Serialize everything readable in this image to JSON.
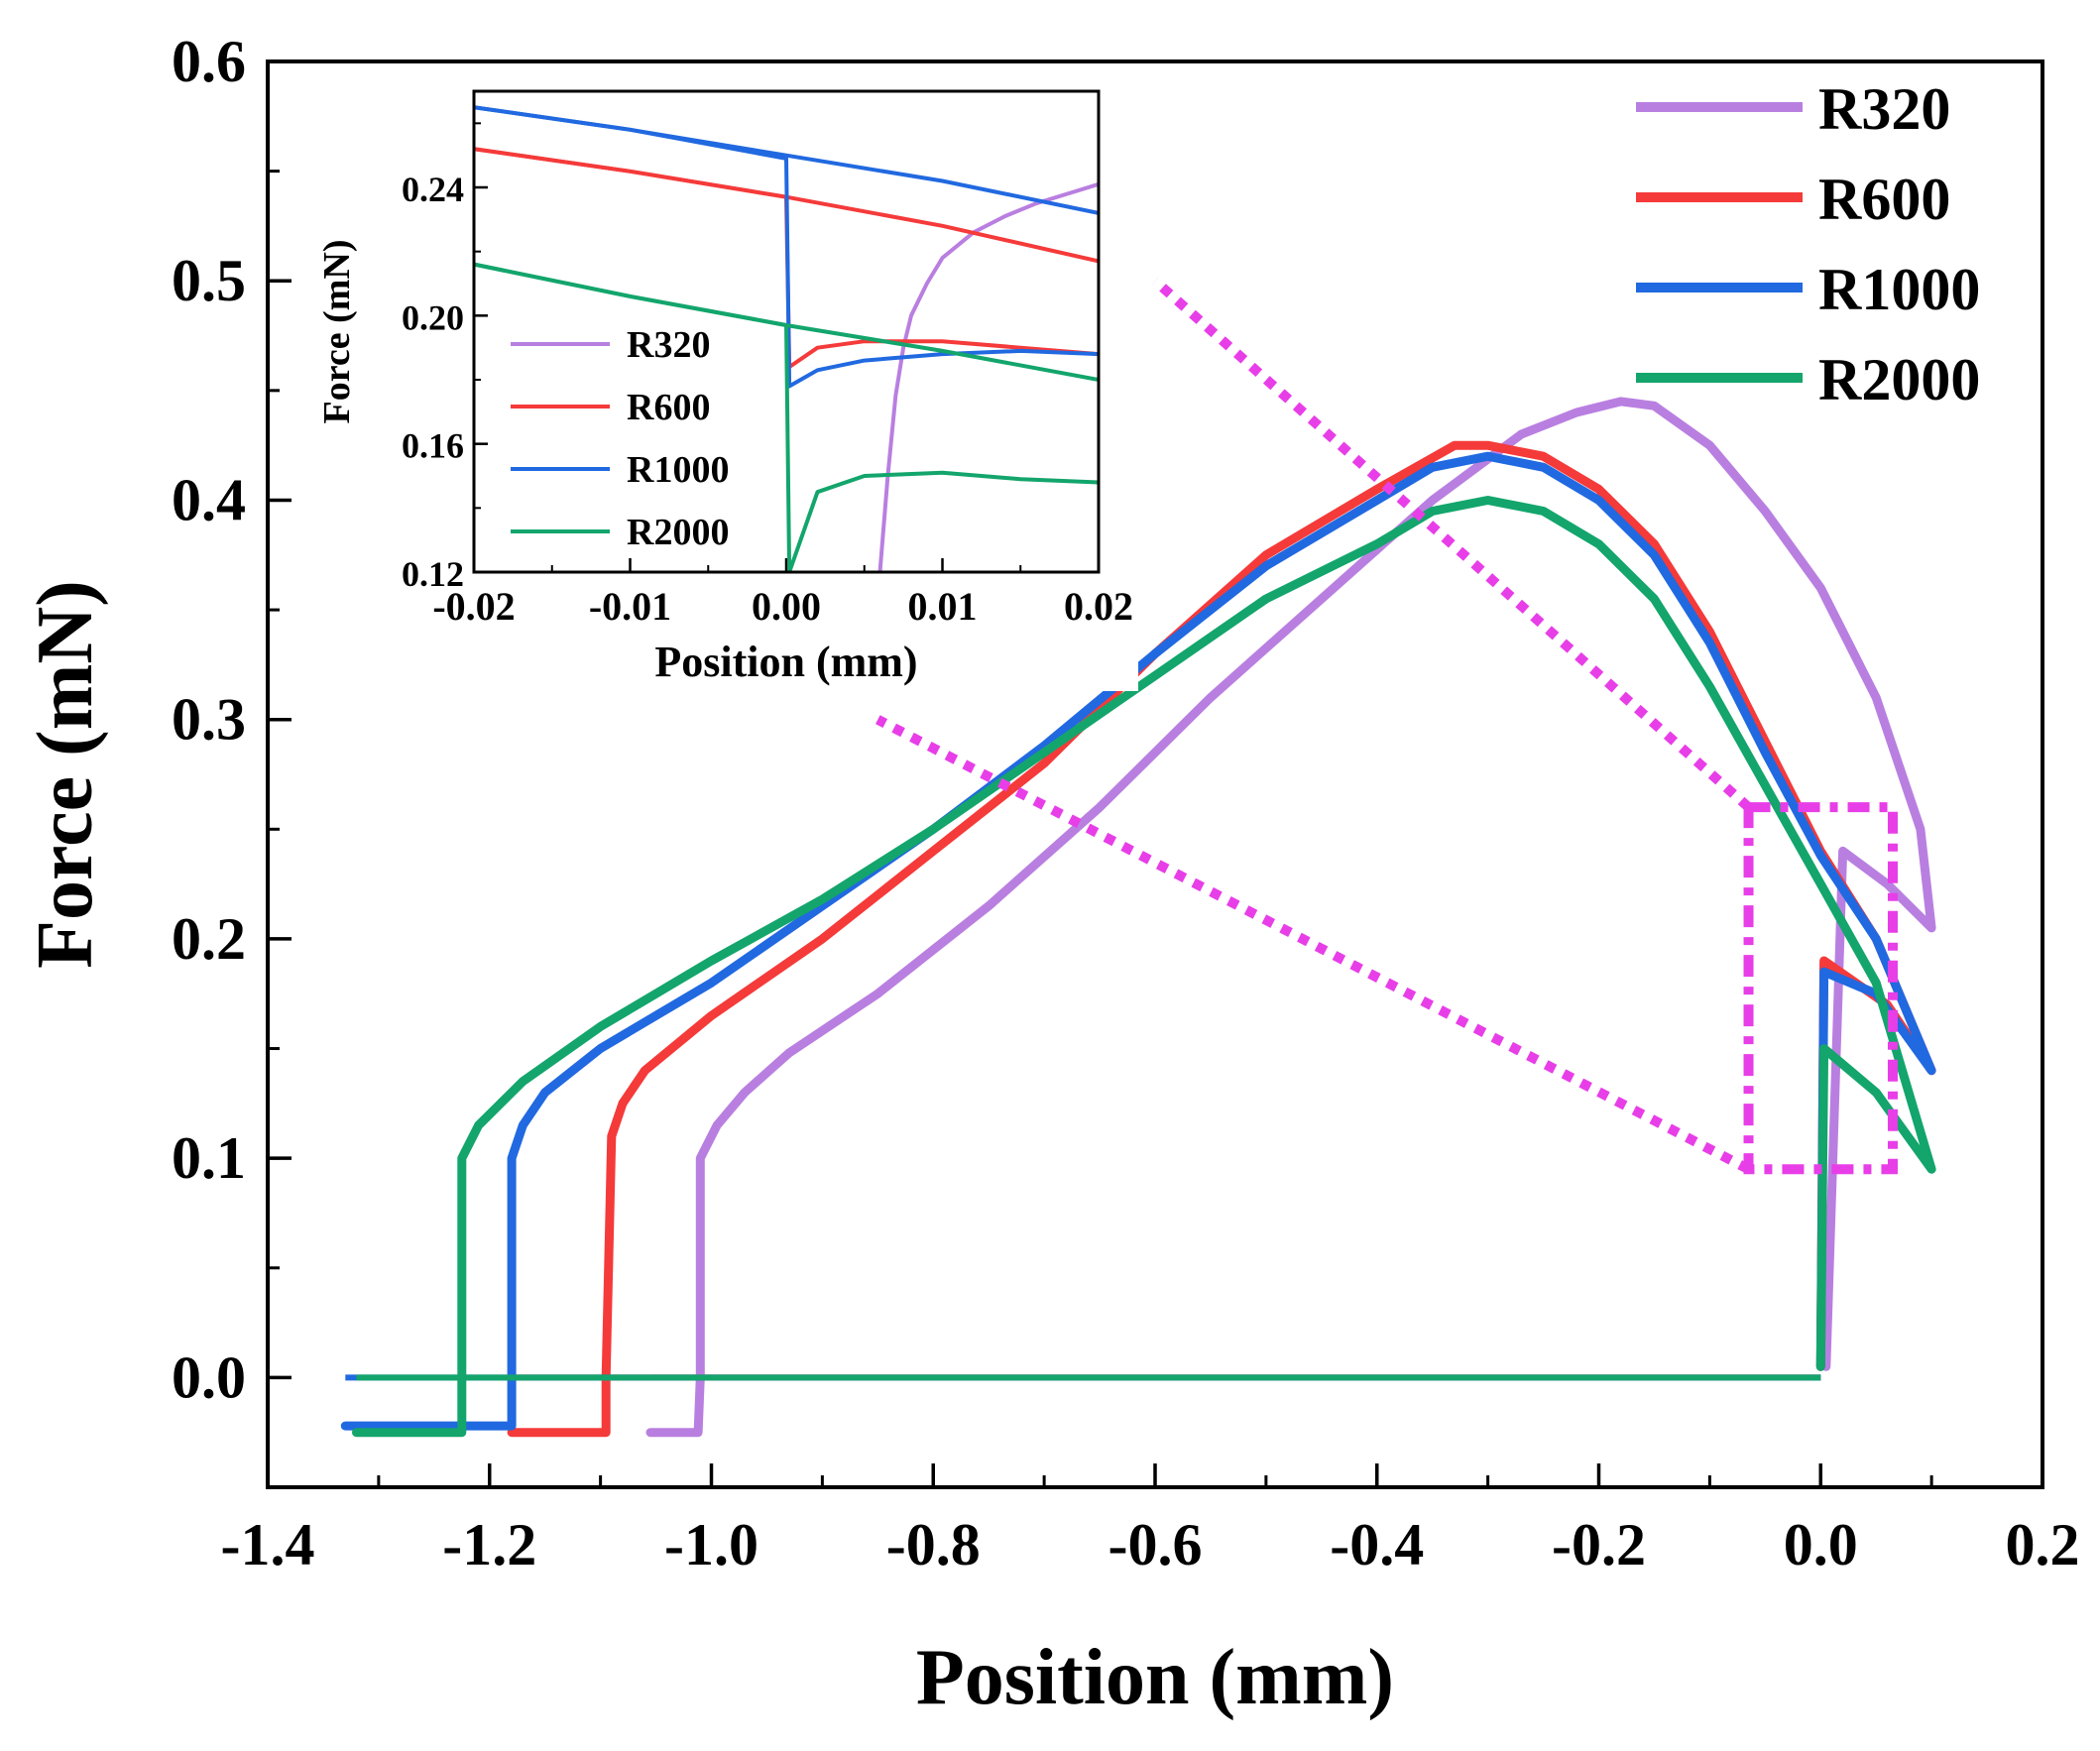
{
  "chart_data": [
    {
      "type": "line",
      "title": "",
      "xlabel": "Position (mm)",
      "ylabel": "Force (mN)",
      "xlim": [
        -1.4,
        0.2
      ],
      "ylim": [
        -0.05,
        0.6
      ],
      "xticks": [
        -1.4,
        -1.2,
        -1.0,
        -0.8,
        -0.6,
        -0.4,
        -0.2,
        0.0,
        0.2
      ],
      "xtick_labels": [
        "-1.4",
        "-1.2",
        "-1.0",
        "-0.8",
        "-0.6",
        "-0.4",
        "-0.2",
        "0.0",
        "0.2"
      ],
      "yticks": [
        0.0,
        0.1,
        0.2,
        0.3,
        0.4,
        0.5,
        0.6
      ],
      "ytick_labels": [
        "0.0",
        "0.1",
        "0.2",
        "0.3",
        "0.4",
        "0.5",
        "0.6"
      ],
      "legend": "top-right",
      "grid": false,
      "series": [
        {
          "name": "R320",
          "color": "#b97fe0",
          "x": [
            0.005,
            0.02,
            0.06,
            0.1,
            0.09,
            0.05,
            0.0,
            -0.05,
            -0.1,
            -0.15,
            -0.18,
            -0.22,
            -0.27,
            -0.35,
            -0.45,
            -0.55,
            -0.65,
            -0.75,
            -0.85,
            -0.93,
            -0.97,
            -0.995,
            -1.01,
            -1.01,
            -1.012,
            -1.035,
            -1.055
          ],
          "y": [
            0.005,
            0.24,
            0.225,
            0.205,
            0.25,
            0.31,
            0.36,
            0.395,
            0.425,
            0.443,
            0.445,
            0.44,
            0.43,
            0.4,
            0.355,
            0.31,
            0.26,
            0.215,
            0.175,
            0.148,
            0.13,
            0.115,
            0.1,
            0.0,
            -0.025,
            -0.025,
            -0.025
          ]
        },
        {
          "name": "R600",
          "color": "#f53a3a",
          "x": [
            0.0,
            0.003,
            0.06,
            0.1,
            0.05,
            0.0,
            -0.05,
            -0.1,
            -0.15,
            -0.2,
            -0.25,
            -0.3,
            -0.33,
            -0.4,
            -0.5,
            -0.6,
            -0.7,
            -0.8,
            -0.9,
            -1.0,
            -1.06,
            -1.08,
            -1.09,
            -1.095,
            -1.095,
            -1.13,
            -1.18
          ],
          "y": [
            0.005,
            0.19,
            0.17,
            0.14,
            0.2,
            0.24,
            0.29,
            0.34,
            0.38,
            0.405,
            0.42,
            0.425,
            0.425,
            0.405,
            0.375,
            0.33,
            0.28,
            0.24,
            0.2,
            0.165,
            0.14,
            0.125,
            0.11,
            0.0,
            -0.025,
            -0.025,
            -0.025
          ]
        },
        {
          "name": "R1000",
          "color": "#2169e0",
          "x": [
            0.0,
            0.003,
            0.05,
            0.1,
            0.05,
            0.0,
            -0.05,
            -0.1,
            -0.15,
            -0.2,
            -0.25,
            -0.3,
            -0.35,
            -0.4,
            -0.5,
            -0.6,
            -0.7,
            -0.8,
            -0.9,
            -1.0,
            -1.1,
            -1.15,
            -1.17,
            -1.18,
            -1.18,
            -1.25,
            -1.33
          ],
          "y": [
            0.005,
            0.185,
            0.175,
            0.14,
            0.2,
            0.238,
            0.285,
            0.335,
            0.375,
            0.4,
            0.415,
            0.42,
            0.415,
            0.4,
            0.37,
            0.33,
            0.288,
            0.25,
            0.215,
            0.18,
            0.15,
            0.13,
            0.115,
            0.1,
            -0.022,
            -0.022,
            -0.022
          ]
        },
        {
          "name": "R2000",
          "color": "#13a56c",
          "x": [
            0.0,
            0.003,
            0.05,
            0.1,
            0.05,
            0.0,
            -0.05,
            -0.1,
            -0.15,
            -0.2,
            -0.25,
            -0.3,
            -0.35,
            -0.4,
            -0.5,
            -0.6,
            -0.7,
            -0.8,
            -0.9,
            -1.0,
            -1.1,
            -1.17,
            -1.21,
            -1.225,
            -1.225,
            -1.27,
            -1.32
          ],
          "y": [
            0.005,
            0.15,
            0.13,
            0.095,
            0.18,
            0.225,
            0.27,
            0.315,
            0.355,
            0.38,
            0.395,
            0.4,
            0.395,
            0.38,
            0.355,
            0.32,
            0.285,
            0.25,
            0.218,
            0.19,
            0.16,
            0.135,
            0.115,
            0.1,
            -0.025,
            -0.025,
            -0.025
          ]
        }
      ],
      "annotations": [
        {
          "type": "highlight-box",
          "x_range": [
            -0.065,
            0.065
          ],
          "y_range": [
            0.095,
            0.26
          ],
          "color": "#e83ee8"
        },
        {
          "type": "zoom-line",
          "from": [
            -0.065,
            0.26
          ],
          "to": [
            -0.6,
            0.5
          ],
          "color": "#e83ee8"
        },
        {
          "type": "zoom-line",
          "from": [
            -0.065,
            0.095
          ],
          "to": [
            -0.85,
            0.3
          ],
          "color": "#e83ee8"
        }
      ]
    },
    {
      "type": "line",
      "title": "",
      "xlabel": "Position (mm)",
      "ylabel": "Force (mN)",
      "xlim": [
        -0.02,
        0.02
      ],
      "ylim": [
        0.12,
        0.27
      ],
      "xticks": [
        -0.02,
        -0.01,
        0.0,
        0.01,
        0.02
      ],
      "xtick_labels": [
        "-0.02",
        "-0.01",
        "0.00",
        "0.01",
        "0.02"
      ],
      "yticks": [
        0.12,
        0.16,
        0.2,
        0.24
      ],
      "ytick_labels": [
        "0.12",
        "0.16",
        "0.20",
        "0.24"
      ],
      "legend": "lower-left",
      "grid": false,
      "series": [
        {
          "name": "R320",
          "color": "#b97fe0",
          "x": [
            0.006,
            0.0065,
            0.007,
            0.0075,
            0.008,
            0.009,
            0.01,
            0.012,
            0.014,
            0.016,
            0.018,
            0.02
          ],
          "y": [
            0.12,
            0.15,
            0.175,
            0.19,
            0.2,
            0.21,
            0.218,
            0.226,
            0.231,
            0.235,
            0.238,
            0.241
          ]
        },
        {
          "name": "R600",
          "color": "#f53a3a",
          "x": [
            -0.02,
            -0.01,
            0.0,
            0.0002,
            0.002,
            0.005,
            0.01,
            0.015,
            0.02
          ],
          "y": [
            0.252,
            0.245,
            0.237,
            0.184,
            0.19,
            0.192,
            0.192,
            0.19,
            0.188
          ],
          "x_upper": [
            -0.02,
            -0.01,
            0.0,
            0.01,
            0.02
          ],
          "y_upper": [
            0.252,
            0.245,
            0.237,
            0.228,
            0.217
          ]
        },
        {
          "name": "R1000",
          "color": "#2169e0",
          "x": [
            -0.02,
            -0.01,
            0.0,
            0.0002,
            0.002,
            0.005,
            0.01,
            0.015,
            0.02
          ],
          "y": [
            0.265,
            0.258,
            0.249,
            0.178,
            0.183,
            0.186,
            0.188,
            0.189,
            0.188
          ],
          "x_upper": [
            -0.02,
            -0.01,
            0.0,
            0.01,
            0.02
          ],
          "y_upper": [
            0.265,
            0.258,
            0.25,
            0.242,
            0.232
          ]
        },
        {
          "name": "R2000",
          "color": "#13a56c",
          "x": [
            -0.02,
            -0.01,
            0.0,
            0.0002,
            0.002,
            0.005,
            0.01,
            0.015,
            0.02
          ],
          "y": [
            0.216,
            0.206,
            0.197,
            0.12,
            0.145,
            0.15,
            0.151,
            0.149,
            0.148
          ],
          "x_upper": [
            -0.02,
            -0.01,
            0.0,
            0.01,
            0.02
          ],
          "y_upper": [
            0.216,
            0.206,
            0.197,
            0.189,
            0.18
          ]
        }
      ]
    }
  ]
}
